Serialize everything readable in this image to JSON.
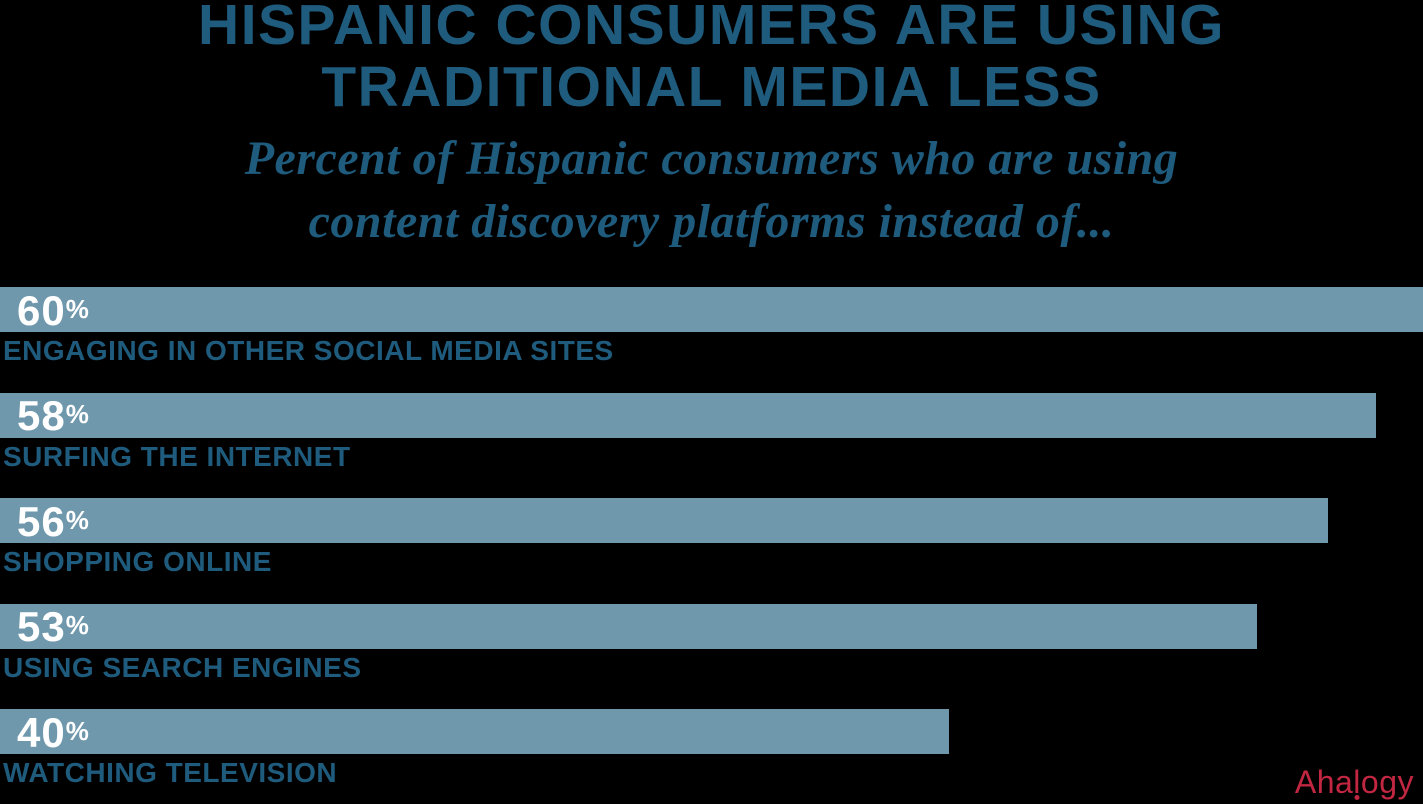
{
  "chart_data": {
    "type": "bar",
    "orientation": "horizontal",
    "title": "HISPANIC CONSUMERS ARE USING TRADITIONAL MEDIA LESS",
    "title_lines": [
      "HISPANIC CONSUMERS ARE USING",
      "TRADITIONAL MEDIA LESS"
    ],
    "subtitle": "Percent of Hispanic consumers who are using content discovery platforms instead of...",
    "subtitle_lines": [
      "Percent of Hispanic consumers who are using",
      "content discovery platforms instead of..."
    ],
    "categories": [
      "ENGAGING IN OTHER SOCIAL MEDIA SITES",
      "SURFING THE INTERNET",
      "SHOPPING ONLINE",
      "USING SEARCH ENGINES",
      "WATCHING TELEVISION"
    ],
    "values": [
      60,
      58,
      56,
      53,
      40
    ],
    "percent_sign": "%",
    "xlim": [
      0,
      60
    ],
    "grid": false,
    "legend": false,
    "value_labels_inside_bars": true,
    "bar_color": "#6f98ac",
    "text_color": "#1e5b7d",
    "value_label_color": "#ffffff",
    "background_color": "#000000"
  },
  "footer": {
    "logo": {
      "text": "Ahalogy",
      "part1": "Aha",
      "part2": "l",
      "part3": "ogy",
      "color": "#c22742"
    }
  }
}
